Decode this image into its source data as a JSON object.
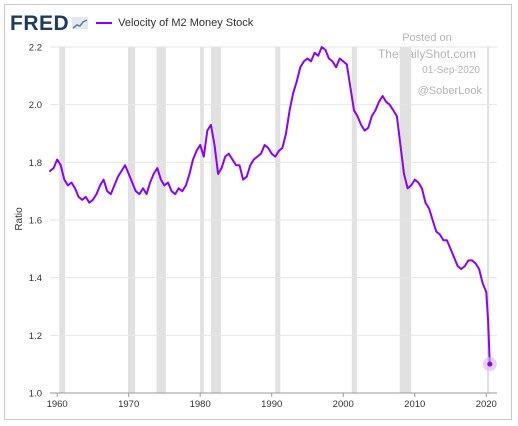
{
  "brand": {
    "logo_text": "FRED",
    "logo_icon": "fred-chart-icon"
  },
  "watermark": {
    "line1": "Posted on",
    "line2": "TheDailyShot.com",
    "line3": "01-Sep-2020",
    "line4": "@SoberLook"
  },
  "chart_data": {
    "type": "line",
    "title": "",
    "xlabel": "",
    "ylabel": "Ratio",
    "xlim": [
      1959,
      2021.5
    ],
    "ylim": [
      1.0,
      2.2
    ],
    "grid": true,
    "legend_position": "top-left",
    "xticks": [
      1960,
      1970,
      1980,
      1990,
      2000,
      2010,
      2020
    ],
    "yticks": [
      1.0,
      1.2,
      1.4,
      1.6,
      1.8,
      2.0,
      2.2
    ],
    "ytick_labels": [
      "1.0",
      "1.2",
      "1.4",
      "1.6",
      "1.8",
      "2.0",
      "2.2"
    ],
    "recessions": [
      [
        1960.3,
        1961.1
      ],
      [
        1969.9,
        1970.9
      ],
      [
        1973.9,
        1975.2
      ],
      [
        1980.0,
        1980.5
      ],
      [
        1981.5,
        1982.9
      ],
      [
        1990.5,
        1991.2
      ],
      [
        2001.2,
        2001.9
      ],
      [
        2007.9,
        2009.5
      ],
      [
        2020.1,
        2020.4
      ]
    ],
    "series": [
      {
        "name": "Velocity of M2 Money Stock",
        "color": "#8b00ff",
        "x": [
          1959.0,
          1959.5,
          1960.0,
          1960.5,
          1961.0,
          1961.5,
          1962.0,
          1962.5,
          1963.0,
          1963.5,
          1964.0,
          1964.5,
          1965.0,
          1965.5,
          1966.0,
          1966.5,
          1967.0,
          1967.5,
          1968.0,
          1968.5,
          1969.0,
          1969.5,
          1970.0,
          1970.5,
          1971.0,
          1971.5,
          1972.0,
          1972.5,
          1973.0,
          1973.5,
          1974.0,
          1974.5,
          1975.0,
          1975.5,
          1976.0,
          1976.5,
          1977.0,
          1977.5,
          1978.0,
          1978.5,
          1979.0,
          1979.5,
          1980.0,
          1980.5,
          1981.0,
          1981.5,
          1982.0,
          1982.5,
          1983.0,
          1983.5,
          1984.0,
          1984.5,
          1985.0,
          1985.5,
          1986.0,
          1986.5,
          1987.0,
          1987.5,
          1988.0,
          1988.5,
          1989.0,
          1989.5,
          1990.0,
          1990.5,
          1991.0,
          1991.5,
          1992.0,
          1992.5,
          1993.0,
          1993.5,
          1994.0,
          1994.5,
          1995.0,
          1995.5,
          1996.0,
          1996.5,
          1997.0,
          1997.5,
          1998.0,
          1998.5,
          1999.0,
          1999.5,
          2000.0,
          2000.5,
          2001.0,
          2001.5,
          2002.0,
          2002.5,
          2003.0,
          2003.5,
          2004.0,
          2004.5,
          2005.0,
          2005.5,
          2006.0,
          2006.5,
          2007.0,
          2007.5,
          2008.0,
          2008.5,
          2009.0,
          2009.5,
          2010.0,
          2010.5,
          2011.0,
          2011.5,
          2012.0,
          2012.5,
          2013.0,
          2013.5,
          2014.0,
          2014.5,
          2015.0,
          2015.5,
          2016.0,
          2016.5,
          2017.0,
          2017.5,
          2018.0,
          2018.5,
          2019.0,
          2019.5,
          2020.0,
          2020.25,
          2020.5
        ],
        "values": [
          1.77,
          1.78,
          1.81,
          1.79,
          1.74,
          1.72,
          1.73,
          1.71,
          1.68,
          1.67,
          1.68,
          1.66,
          1.67,
          1.69,
          1.72,
          1.74,
          1.7,
          1.69,
          1.72,
          1.75,
          1.77,
          1.79,
          1.76,
          1.73,
          1.7,
          1.69,
          1.71,
          1.69,
          1.73,
          1.76,
          1.78,
          1.74,
          1.72,
          1.73,
          1.7,
          1.69,
          1.71,
          1.7,
          1.72,
          1.76,
          1.81,
          1.84,
          1.86,
          1.82,
          1.91,
          1.93,
          1.86,
          1.76,
          1.78,
          1.82,
          1.83,
          1.81,
          1.79,
          1.79,
          1.74,
          1.75,
          1.79,
          1.81,
          1.82,
          1.83,
          1.86,
          1.85,
          1.83,
          1.82,
          1.84,
          1.85,
          1.9,
          1.98,
          2.04,
          2.08,
          2.13,
          2.15,
          2.16,
          2.15,
          2.18,
          2.17,
          2.2,
          2.19,
          2.16,
          2.15,
          2.13,
          2.16,
          2.15,
          2.14,
          2.06,
          1.98,
          1.96,
          1.93,
          1.91,
          1.92,
          1.96,
          1.98,
          2.01,
          2.03,
          2.01,
          2.0,
          1.98,
          1.96,
          1.86,
          1.76,
          1.71,
          1.72,
          1.74,
          1.73,
          1.71,
          1.66,
          1.64,
          1.6,
          1.56,
          1.55,
          1.53,
          1.53,
          1.5,
          1.47,
          1.44,
          1.43,
          1.44,
          1.46,
          1.46,
          1.45,
          1.43,
          1.38,
          1.35,
          1.25,
          1.1
        ]
      }
    ],
    "highlight_point": {
      "x": 2020.5,
      "y": 1.1
    }
  }
}
